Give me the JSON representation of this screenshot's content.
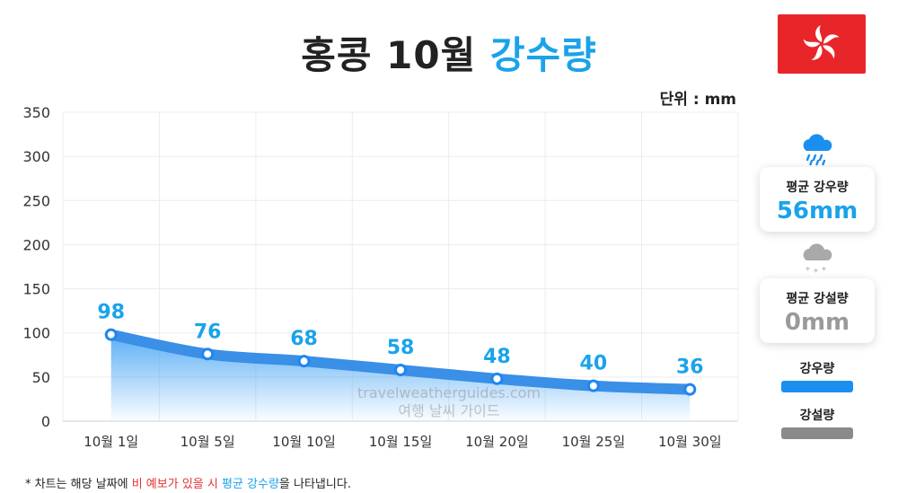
{
  "title": {
    "main": "홍콩 10월",
    "accent": "강수량"
  },
  "unit_label": "단위 : mm",
  "chart_data": {
    "type": "area",
    "title": "홍콩 10월 강수량",
    "categories": [
      "10월 1일",
      "10월 5일",
      "10월 10일",
      "10월 15일",
      "10월 20일",
      "10월 25일",
      "10월 30일"
    ],
    "series": [
      {
        "values": [
          98,
          76,
          68,
          58,
          48,
          40,
          36
        ]
      }
    ],
    "yticks": [
      0,
      50,
      100,
      150,
      200,
      250,
      300,
      350
    ],
    "ylim": [
      0,
      350
    ],
    "grid": true,
    "unit": "mm",
    "colors": {
      "line": "#3a8fe6",
      "point_stroke": "#1f86f0",
      "label": "#1aa3ea"
    }
  },
  "cards": {
    "rain": {
      "label": "평균 강우량",
      "value": "56mm",
      "icon": "rain-cloud-icon"
    },
    "snow": {
      "label": "평균 강설량",
      "value": "0mm",
      "icon": "snow-cloud-icon"
    }
  },
  "legend": [
    {
      "label": "강우량",
      "color": "#1a8ff0"
    },
    {
      "label": "강설량",
      "color": "#8a8a8a"
    }
  ],
  "watermark": {
    "line1": "travelweatherguides.com",
    "line2": "여행 날씨 가이드"
  },
  "footnote": {
    "prefix": "* 차트는 해당 날짜에 ",
    "red": "비 예보가 있을 시",
    "mid": " ",
    "blue": "평균 강수량",
    "suffix": "을 나타냅니다."
  }
}
